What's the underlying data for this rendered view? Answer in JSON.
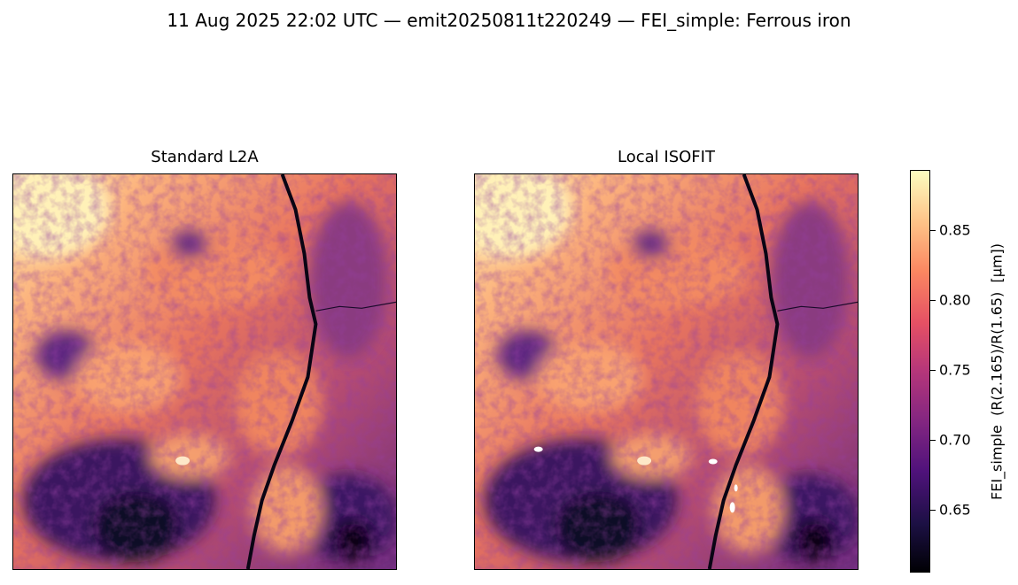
{
  "figure": {
    "suptitle": "11 Aug 2025 22:02 UTC — emit20250811t220249 — FEI_simple: Ferrous iron"
  },
  "panels": [
    {
      "title": "Standard L2A"
    },
    {
      "title": "Local ISOFIT"
    }
  ],
  "colorbar": {
    "label": "FEI_simple  (R(2.165)/R(1.65)  [µm])",
    "colormap": "magma",
    "range": [
      0.605,
      0.893
    ],
    "ticks": [
      {
        "value": 0.65,
        "label": "0.65"
      },
      {
        "value": 0.7,
        "label": "0.70"
      },
      {
        "value": 0.75,
        "label": "0.75"
      },
      {
        "value": 0.8,
        "label": "0.80"
      },
      {
        "value": 0.85,
        "label": "0.85"
      }
    ]
  },
  "chart_data": {
    "type": "heatmap",
    "title": "11 Aug 2025 22:02 UTC — emit20250811t220249 — FEI_simple: Ferrous iron",
    "subplots": [
      "Standard L2A",
      "Local ISOFIT"
    ],
    "value_label": "FEI_simple  (R(2.165)/R(1.65)  [µm])",
    "vmin": 0.605,
    "vmax": 0.893,
    "colormap": "magma",
    "axes_ticks": false
  }
}
